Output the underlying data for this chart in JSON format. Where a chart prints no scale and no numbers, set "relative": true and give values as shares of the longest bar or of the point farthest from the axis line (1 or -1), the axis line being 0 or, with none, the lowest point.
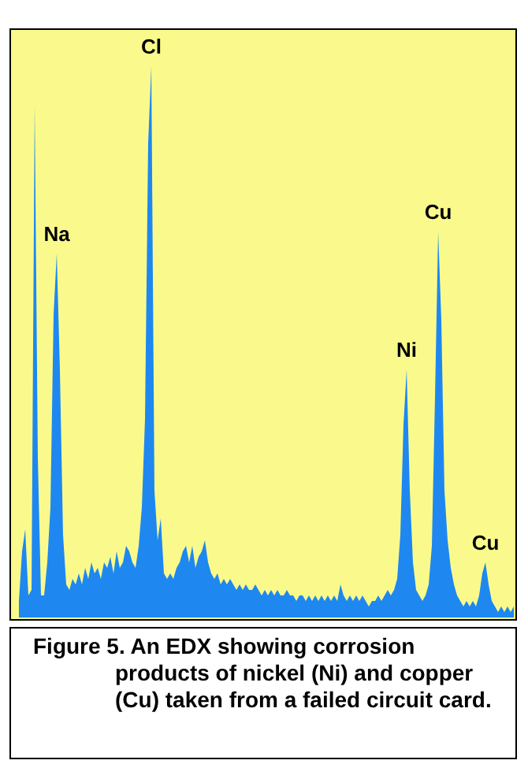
{
  "chart_data": {
    "type": "area",
    "relative": true,
    "color": "#1e88f0",
    "legend": false,
    "tick_labels": false,
    "marker": "none",
    "categories": [
      null,
      null,
      null,
      null,
      null,
      null,
      null,
      null,
      null,
      null,
      null,
      null,
      null,
      null,
      null,
      null,
      null,
      null,
      null,
      null,
      null,
      null,
      null,
      null,
      null,
      null,
      null,
      null,
      null,
      null,
      null,
      null,
      null,
      null,
      null,
      null,
      null,
      null,
      null,
      null,
      null,
      null,
      null,
      null,
      null,
      null,
      null,
      null,
      null,
      null,
      null,
      null,
      null,
      null,
      null,
      null,
      null,
      null,
      null,
      null,
      null,
      null,
      null,
      null,
      null,
      null,
      null,
      null,
      null,
      null,
      null,
      null,
      null,
      null,
      null,
      null,
      null,
      null,
      null,
      null,
      null,
      null,
      null,
      null,
      null,
      null,
      null,
      null,
      null,
      null,
      null,
      null,
      null,
      null,
      null,
      null,
      null,
      null,
      null,
      null,
      null,
      null,
      null,
      null,
      null,
      null,
      null,
      null,
      null,
      null,
      null,
      null,
      null,
      null,
      null,
      null,
      null,
      null,
      null,
      null,
      null,
      null,
      null,
      null,
      null,
      null,
      null,
      null,
      null,
      null,
      null,
      null,
      null,
      null,
      null,
      null,
      null,
      null,
      null,
      null,
      null,
      null,
      null,
      null,
      null,
      null,
      null,
      null,
      null,
      null,
      null,
      null,
      null,
      null,
      null,
      null,
      null,
      null
    ],
    "values": [
      0.03,
      0.12,
      0.16,
      0.04,
      0.05,
      0.93,
      0.29,
      0.04,
      0.04,
      0.1,
      0.2,
      0.55,
      0.66,
      0.45,
      0.15,
      0.06,
      0.05,
      0.07,
      0.06,
      0.08,
      0.06,
      0.09,
      0.07,
      0.1,
      0.08,
      0.09,
      0.07,
      0.1,
      0.09,
      0.11,
      0.08,
      0.12,
      0.09,
      0.1,
      0.13,
      0.12,
      0.1,
      0.09,
      0.13,
      0.2,
      0.36,
      0.86,
      1.0,
      0.23,
      0.14,
      0.18,
      0.08,
      0.07,
      0.08,
      0.07,
      0.09,
      0.1,
      0.12,
      0.13,
      0.1,
      0.13,
      0.09,
      0.11,
      0.12,
      0.14,
      0.1,
      0.08,
      0.07,
      0.08,
      0.06,
      0.07,
      0.06,
      0.07,
      0.06,
      0.05,
      0.06,
      0.05,
      0.06,
      0.05,
      0.05,
      0.06,
      0.05,
      0.04,
      0.05,
      0.04,
      0.05,
      0.04,
      0.05,
      0.04,
      0.04,
      0.05,
      0.04,
      0.04,
      0.03,
      0.04,
      0.04,
      0.03,
      0.04,
      0.03,
      0.04,
      0.03,
      0.04,
      0.03,
      0.04,
      0.03,
      0.04,
      0.03,
      0.06,
      0.04,
      0.03,
      0.04,
      0.03,
      0.04,
      0.03,
      0.04,
      0.03,
      0.02,
      0.03,
      0.03,
      0.04,
      0.03,
      0.04,
      0.05,
      0.04,
      0.05,
      0.07,
      0.15,
      0.35,
      0.45,
      0.23,
      0.1,
      0.05,
      0.04,
      0.03,
      0.04,
      0.06,
      0.13,
      0.4,
      0.7,
      0.54,
      0.23,
      0.14,
      0.09,
      0.06,
      0.04,
      0.03,
      0.02,
      0.03,
      0.02,
      0.03,
      0.02,
      0.04,
      0.08,
      0.1,
      0.06,
      0.03,
      0.02,
      0.01,
      0.02,
      0.01,
      0.02,
      0.01,
      0.02
    ],
    "annotations": [
      {
        "text": "Na",
        "y": 0.66
      },
      {
        "text": "Cl",
        "y": 1.0
      },
      {
        "text": "Ni",
        "y": 0.45
      },
      {
        "text": "Cu",
        "y": 0.7
      },
      {
        "text": "Cu",
        "y": 0.1
      },
      "Figure 5. An EDX showing corrosion products of nickel (Ni) and copper (Cu) taken from a failed circuit card."
    ]
  }
}
